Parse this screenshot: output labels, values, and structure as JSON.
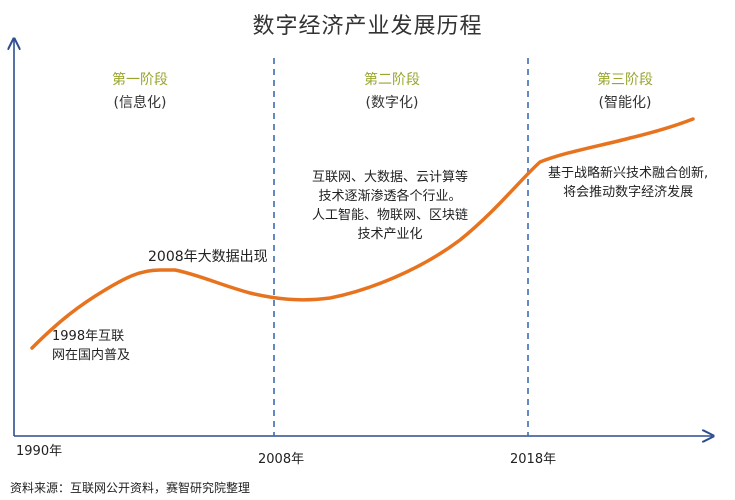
{
  "title": "数字经济产业发展历程",
  "stages": [
    {
      "name": "第一阶段",
      "sub": "(信息化)"
    },
    {
      "name": "第二阶段",
      "sub": "(数字化)"
    },
    {
      "name": "第三阶段",
      "sub": "(智能化)"
    }
  ],
  "annotations": {
    "a1998": [
      "1998年互联",
      "网在国内普及"
    ],
    "a2008": "2008年大数据出现",
    "stage2_desc": [
      "互联网、大数据、云计算等",
      "技术逐渐渗透各个行业。",
      "人工智能、物联网、区块链",
      "技术产业化"
    ],
    "stage3_desc": [
      "基于战略新兴技术融合创新,",
      "将会推动数字经济发展"
    ]
  },
  "x_labels": [
    "1990年",
    "2008年",
    "2018年"
  ],
  "source": "资料来源：互联网公开资料，赛智研究院整理",
  "colors": {
    "curve": "#e8731f",
    "axis": "#2e4f8f",
    "divider": "#3d6cb0",
    "stage_name": "#9aa62e"
  }
}
